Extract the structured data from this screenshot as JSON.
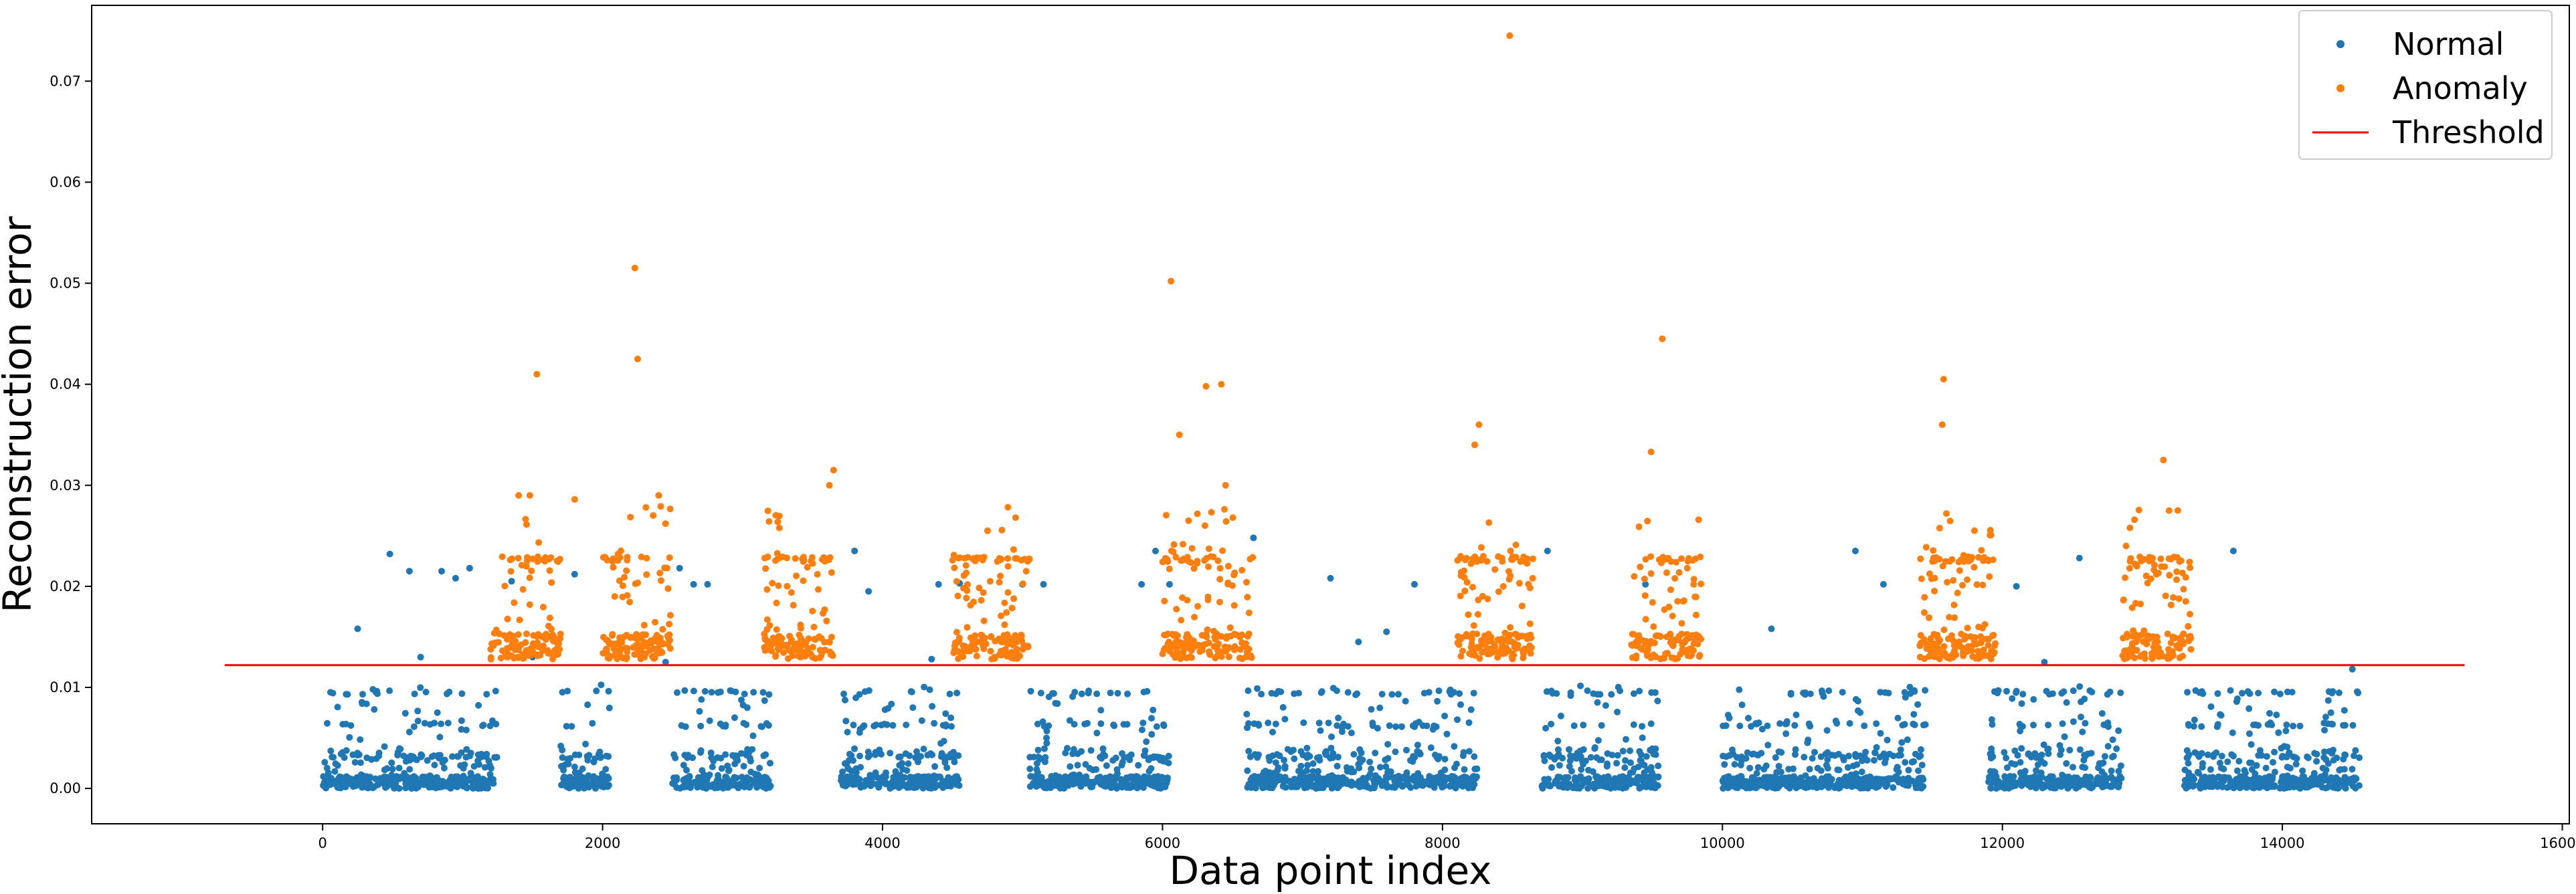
{
  "chart_data": {
    "type": "scatter",
    "xlabel": "Data point index",
    "ylabel": "Reconstruction error",
    "xlim": [
      -1650,
      16050
    ],
    "ylim": [
      -0.0035,
      0.0775
    ],
    "xticks": [
      0,
      2000,
      4000,
      6000,
      8000,
      10000,
      12000,
      14000,
      16000
    ],
    "yticks": [
      0.0,
      0.01,
      0.02,
      0.03,
      0.04,
      0.05,
      0.06,
      0.07
    ],
    "ytick_labels": [
      "0.00",
      "0.01",
      "0.02",
      "0.03",
      "0.04",
      "0.05",
      "0.06",
      "0.07"
    ],
    "threshold": {
      "value": 0.0122,
      "x_range": [
        -700,
        15300
      ]
    },
    "legend": {
      "position": "top-right"
    },
    "series": [
      {
        "name": "Normal",
        "color": "#1f77b4",
        "clusters": [
          [
            0,
            1250
          ],
          [
            1700,
            2050
          ],
          [
            2500,
            3200
          ],
          [
            3700,
            4550
          ],
          [
            5050,
            6050
          ],
          [
            6600,
            8250
          ],
          [
            8700,
            9550
          ],
          [
            10000,
            11450
          ],
          [
            11900,
            12850
          ],
          [
            13300,
            14550
          ]
        ],
        "points": [
          [
            250,
            0.0158
          ],
          [
            480,
            0.0232
          ],
          [
            620,
            0.0215
          ],
          [
            700,
            0.013
          ],
          [
            850,
            0.0215
          ],
          [
            950,
            0.0208
          ],
          [
            1050,
            0.0218
          ],
          [
            1350,
            0.0205
          ],
          [
            1800,
            0.0212
          ],
          [
            2550,
            0.0218
          ],
          [
            2650,
            0.0202
          ],
          [
            2750,
            0.0202
          ],
          [
            3800,
            0.0235
          ],
          [
            3900,
            0.0195
          ],
          [
            4400,
            0.0202
          ],
          [
            4550,
            0.0203
          ],
          [
            5000,
            0.0202
          ],
          [
            5150,
            0.0202
          ],
          [
            5850,
            0.0202
          ],
          [
            5950,
            0.0235
          ],
          [
            6050,
            0.0202
          ],
          [
            6650,
            0.0248
          ],
          [
            7200,
            0.0208
          ],
          [
            7400,
            0.0145
          ],
          [
            7600,
            0.0155
          ],
          [
            7800,
            0.0202
          ],
          [
            8750,
            0.0235
          ],
          [
            9450,
            0.0202
          ],
          [
            10350,
            0.0158
          ],
          [
            10950,
            0.0235
          ],
          [
            11150,
            0.0202
          ],
          [
            12100,
            0.02
          ],
          [
            12550,
            0.0228
          ],
          [
            13650,
            0.0235
          ],
          [
            14500,
            0.0118
          ],
          [
            12300,
            0.0125
          ],
          [
            1500,
            0.013
          ],
          [
            2450,
            0.0125
          ],
          [
            4350,
            0.0128
          ],
          [
            4800,
            0.013
          ]
        ]
      },
      {
        "name": "Anomaly",
        "color": "#ff7f0e",
        "clusters": [
          [
            1200,
            1700
          ],
          [
            2000,
            2500
          ],
          [
            3150,
            3650
          ],
          [
            4500,
            5050
          ],
          [
            6000,
            6650
          ],
          [
            8100,
            8650
          ],
          [
            9350,
            9850
          ],
          [
            11400,
            11950
          ],
          [
            12850,
            13350
          ]
        ],
        "points": [
          [
            1530,
            0.041
          ],
          [
            2230,
            0.0515
          ],
          [
            2250,
            0.0425
          ],
          [
            3650,
            0.0315
          ],
          [
            3620,
            0.03
          ],
          [
            6060,
            0.0502
          ],
          [
            6120,
            0.035
          ],
          [
            6310,
            0.0398
          ],
          [
            6420,
            0.04
          ],
          [
            6450,
            0.03
          ],
          [
            8480,
            0.0745
          ],
          [
            8260,
            0.036
          ],
          [
            8230,
            0.034
          ],
          [
            9570,
            0.0445
          ],
          [
            9490,
            0.0333
          ],
          [
            11580,
            0.0405
          ],
          [
            11570,
            0.036
          ],
          [
            13150,
            0.0325
          ],
          [
            13190,
            0.0275
          ],
          [
            4750,
            0.0255
          ],
          [
            4950,
            0.0268
          ],
          [
            1480,
            0.029
          ],
          [
            2400,
            0.029
          ],
          [
            1400,
            0.029
          ],
          [
            1800,
            0.0286
          ]
        ]
      },
      {
        "name": "Threshold",
        "color": "#ff0000"
      }
    ]
  }
}
